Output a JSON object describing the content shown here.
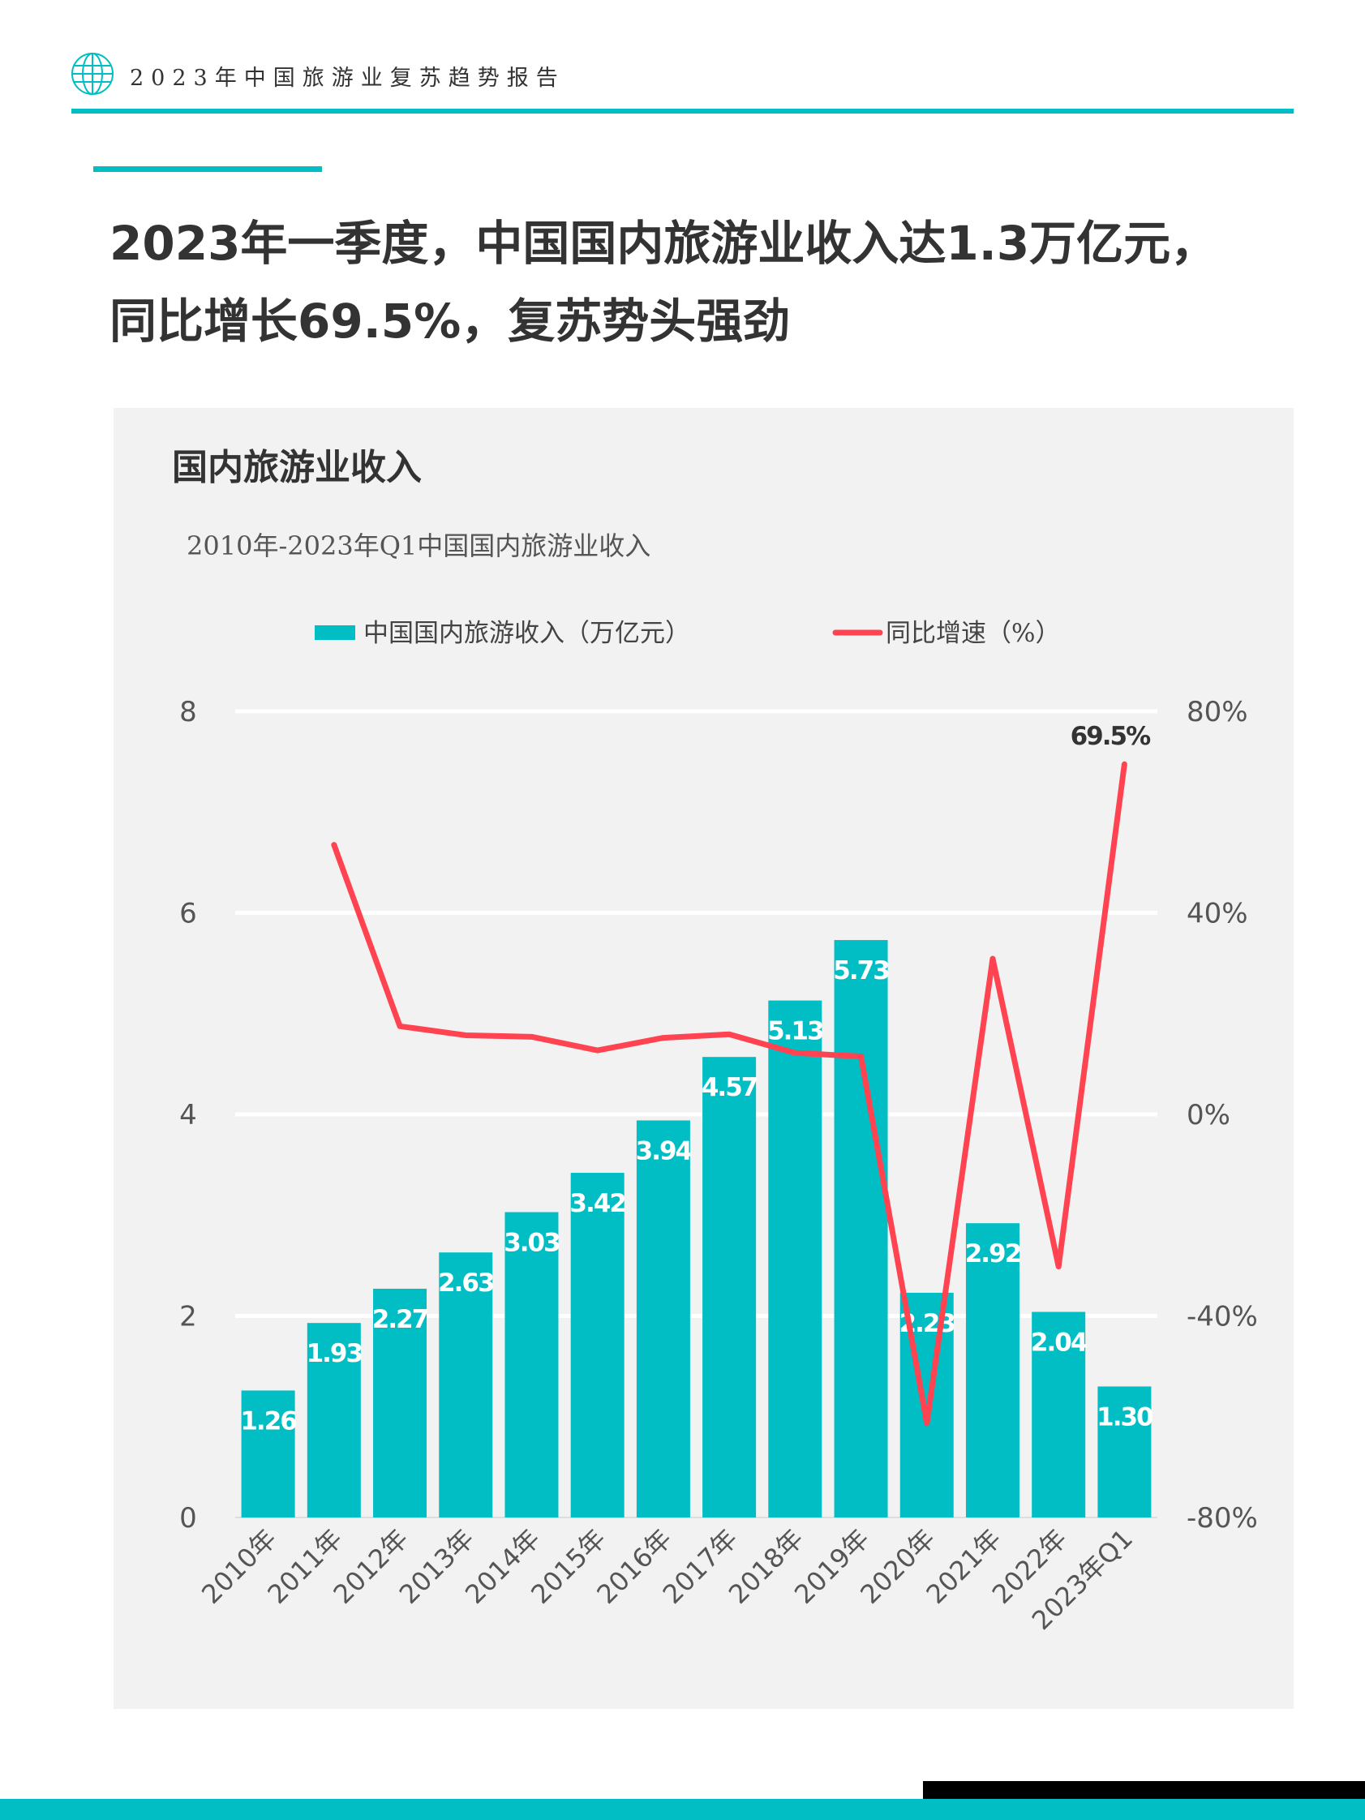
{
  "header": {
    "title": "2023年中国旅游业复苏趋势报告",
    "logo": "globe-icon"
  },
  "headline": {
    "line1": "2023年一季度，中国国内旅游业收入达1.3万亿元，",
    "line2": "同比增长69.5%，复苏势头强劲"
  },
  "colors": {
    "accent": "#00bec4",
    "line": "#ff4351",
    "panel": "#f2f2f2"
  },
  "chart_data": {
    "type": "bar+line",
    "title": "国内旅游业收入",
    "subtitle": "2010年-2023年Q1中国国内旅游业收入",
    "categories": [
      "2010年",
      "2011年",
      "2012年",
      "2013年",
      "2014年",
      "2015年",
      "2016年",
      "2017年",
      "2018年",
      "2019年",
      "2020年",
      "2021年",
      "2022年",
      "2023年Q1"
    ],
    "series": [
      {
        "name": "中国国内旅游收入（万亿元）",
        "type": "bar",
        "axis": "left",
        "values": [
          1.26,
          1.93,
          2.27,
          2.63,
          3.03,
          3.42,
          3.94,
          4.57,
          5.13,
          5.73,
          2.23,
          2.92,
          2.04,
          1.3
        ],
        "labels": [
          "1.26",
          "1.93",
          "2.27",
          "2.63",
          "3.03",
          "3.42",
          "3.94",
          "4.57",
          "5.13",
          "5.73",
          "2.23",
          "2.92",
          "2.04",
          "1.30"
        ]
      },
      {
        "name": "同比增速（%）",
        "type": "line",
        "axis": "right",
        "values": [
          null,
          53.5,
          17.5,
          15.7,
          15.4,
          12.7,
          15.2,
          15.9,
          12.2,
          11.5,
          -61.3,
          30.9,
          -30.2,
          69.5
        ],
        "annotation": "69.5%"
      }
    ],
    "y_left": {
      "ylim": [
        0,
        8
      ],
      "ticks": [
        "0",
        "2",
        "4",
        "6",
        "8"
      ]
    },
    "y_right": {
      "ylim": [
        -80,
        80
      ],
      "ticks": [
        "-80%",
        "-40%",
        "0%",
        "40%",
        "80%"
      ]
    },
    "grid": true,
    "legend": "top-center"
  }
}
